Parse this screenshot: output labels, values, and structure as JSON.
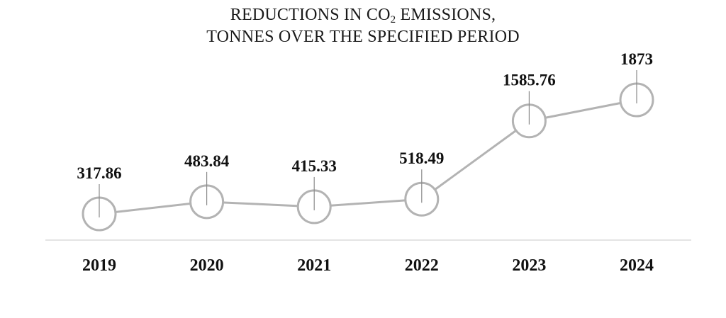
{
  "chart_data": {
    "type": "line",
    "title": {
      "line1_before": "REDUCTIONS IN CO",
      "line1_subscript": "2",
      "line1_after": " EMISSIONS,",
      "line2": "TONNES OVER THE SPECIFIED PERIOD"
    },
    "xlabel": "",
    "ylabel": "",
    "categories": [
      "2019",
      "2020",
      "2021",
      "2022",
      "2023",
      "2024"
    ],
    "series": [
      {
        "values": [
          317.86,
          483.84,
          415.33,
          518.49,
          1585.76,
          1873
        ],
        "labels": [
          "317.86",
          "483.84",
          "415.33",
          "518.49",
          "1585.76",
          "1873"
        ]
      }
    ],
    "grid": false,
    "legend": "none",
    "colors": {
      "line": "#b3b3b3",
      "marker_stroke": "#b3b3b3",
      "marker_fill": "#ffffff",
      "axis": "#d4d4d4",
      "text": "#111111"
    }
  }
}
